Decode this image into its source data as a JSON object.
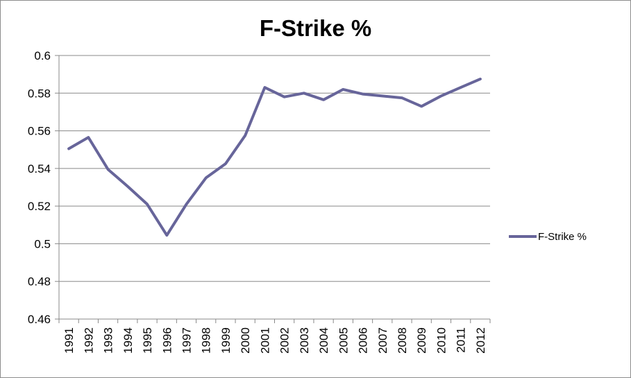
{
  "chart_data": {
    "type": "line",
    "title": "F-Strike %",
    "xlabel": "",
    "ylabel": "",
    "x": [
      "1991",
      "1992",
      "1993",
      "1994",
      "1995",
      "1996",
      "1997",
      "1998",
      "1999",
      "2000",
      "2001",
      "2002",
      "2003",
      "2004",
      "2005",
      "2006",
      "2007",
      "2008",
      "2009",
      "2010",
      "2011",
      "2012"
    ],
    "series": [
      {
        "name": "F-Strike %",
        "color": "#67659a",
        "values": [
          0.5505,
          0.5565,
          0.5395,
          0.5305,
          0.521,
          0.5045,
          0.521,
          0.535,
          0.5425,
          0.5575,
          0.583,
          0.578,
          0.58,
          0.5765,
          0.582,
          0.5795,
          0.5785,
          0.5775,
          0.573,
          0.5785,
          0.583,
          0.5875
        ]
      }
    ],
    "ylim": [
      0.46,
      0.6
    ],
    "yticks": [
      "0.46",
      "0.48",
      "0.5",
      "0.52",
      "0.54",
      "0.56",
      "0.58",
      "0.6"
    ],
    "ytick_values": [
      0.46,
      0.48,
      0.5,
      0.52,
      0.54,
      0.56,
      0.58,
      0.6
    ],
    "grid": true,
    "legend_position": "right"
  }
}
